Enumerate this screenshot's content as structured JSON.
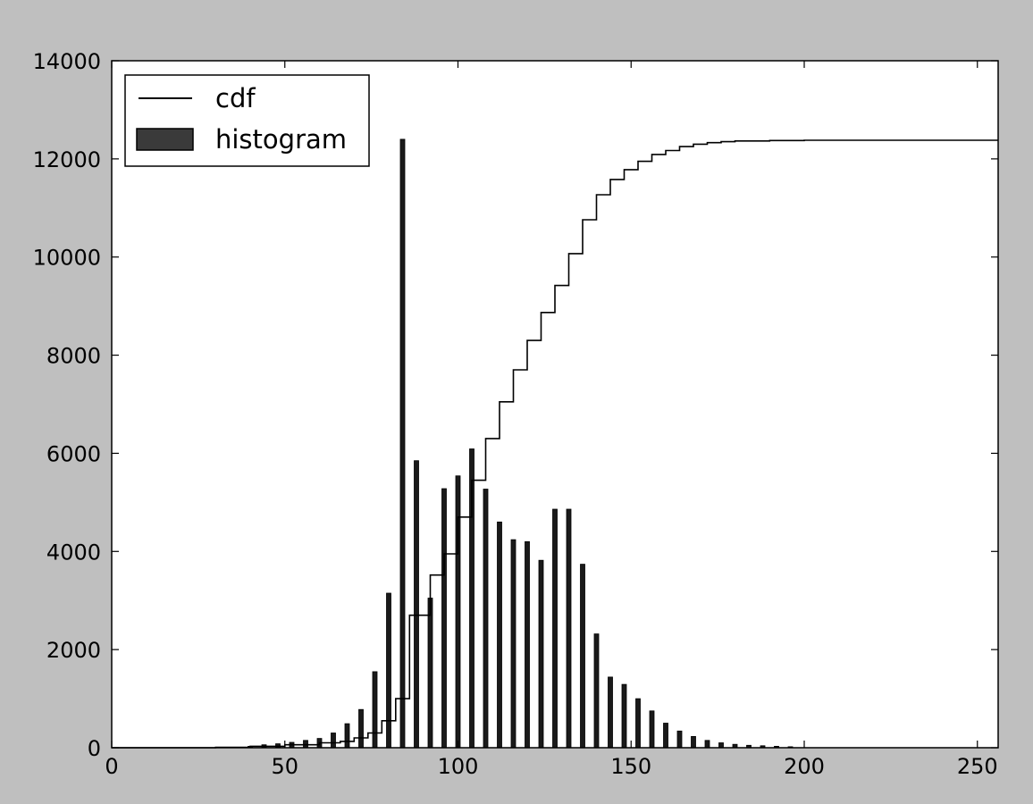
{
  "chart_data": {
    "type": "bar",
    "title": "",
    "xlabel": "",
    "ylabel": "",
    "xlim": [
      0,
      256
    ],
    "ylim": [
      0,
      14000
    ],
    "xticks": [
      "0",
      "50",
      "100",
      "150",
      "200",
      "250"
    ],
    "yticks": [
      "0",
      "2000",
      "4000",
      "6000",
      "8000",
      "10000",
      "12000",
      "14000"
    ],
    "grid": false,
    "legend_position": "top-left",
    "legend": [
      "cdf",
      "histogram"
    ],
    "colors": {
      "bar_fill": "#1a1a1a",
      "line": "#000000",
      "background": "#bfbfbf",
      "plot_bg": "#ffffff"
    },
    "series": [
      {
        "name": "histogram",
        "type": "bar",
        "x": [
          40,
          44,
          48,
          52,
          56,
          60,
          64,
          68,
          72,
          76,
          80,
          84,
          88,
          92,
          96,
          100,
          104,
          108,
          112,
          116,
          120,
          124,
          128,
          132,
          136,
          140,
          144,
          148,
          152,
          156,
          160,
          164,
          168,
          172,
          176,
          180,
          184,
          188,
          192,
          196
        ],
        "values": [
          30,
          60,
          80,
          110,
          150,
          190,
          300,
          490,
          780,
          1550,
          3150,
          12400,
          5850,
          3050,
          5280,
          5540,
          6090,
          5270,
          4600,
          4240,
          4200,
          3820,
          4860,
          4860,
          3740,
          2320,
          1440,
          1290,
          1000,
          750,
          500,
          340,
          230,
          150,
          100,
          70,
          50,
          40,
          30,
          20
        ]
      },
      {
        "name": "cdf",
        "type": "line",
        "x": [
          0,
          30,
          40,
          50,
          60,
          66,
          70,
          74,
          78,
          82,
          86,
          88,
          92,
          96,
          100,
          104,
          108,
          112,
          116,
          120,
          124,
          128,
          132,
          136,
          140,
          144,
          148,
          152,
          156,
          160,
          164,
          168,
          172,
          176,
          180,
          190,
          200,
          256
        ],
        "values": [
          0,
          10,
          30,
          60,
          100,
          130,
          200,
          300,
          550,
          1000,
          2700,
          2700,
          3520,
          3950,
          4700,
          5450,
          6300,
          7050,
          7700,
          8300,
          8870,
          9420,
          10070,
          10760,
          11270,
          11580,
          11780,
          11950,
          12090,
          12170,
          12250,
          12300,
          12330,
          12350,
          12365,
          12375,
          12380,
          12380
        ]
      }
    ]
  }
}
